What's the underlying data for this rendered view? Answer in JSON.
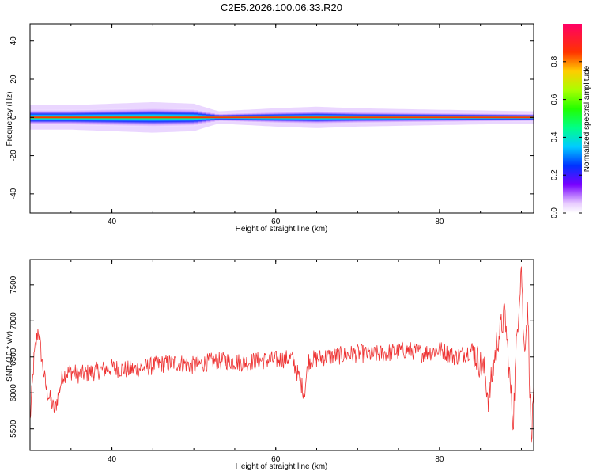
{
  "title": "C2E5.2026.100.06.33.R20",
  "chart_data": [
    {
      "type": "heatmap",
      "xlabel": "Height of straight line (km)",
      "ylabel": "Frequency (Hz)",
      "xlim": [
        30,
        91.5
      ],
      "ylim": [
        -50,
        49
      ],
      "x_ticks": [
        40,
        60,
        80
      ],
      "y_ticks": [
        -40,
        -20,
        0,
        20,
        40
      ],
      "band_center_hz": 0,
      "band_profile": [
        {
          "x": 30,
          "halfwidth_hz": 4
        },
        {
          "x": 35,
          "halfwidth_hz": 4
        },
        {
          "x": 40,
          "halfwidth_hz": 4.5
        },
        {
          "x": 45,
          "halfwidth_hz": 5
        },
        {
          "x": 50,
          "halfwidth_hz": 4.5
        },
        {
          "x": 53,
          "halfwidth_hz": 2
        },
        {
          "x": 60,
          "halfwidth_hz": 3
        },
        {
          "x": 65,
          "halfwidth_hz": 3.5
        },
        {
          "x": 70,
          "halfwidth_hz": 3
        },
        {
          "x": 80,
          "halfwidth_hz": 2.5
        },
        {
          "x": 91.5,
          "halfwidth_hz": 2
        }
      ],
      "colorbar": {
        "label": "Normalized spectral amplitude",
        "ticks": [
          "0.0",
          "0.2",
          "0.4",
          "0.6",
          "0.8"
        ],
        "tick_values": [
          0,
          0.2,
          0.4,
          0.6,
          0.8
        ],
        "range": [
          0,
          1
        ],
        "colormap": "rainbow-hsv"
      }
    },
    {
      "type": "line",
      "xlabel": "Height of straight line (km)",
      "ylabel": "SNR (10 * v/v)",
      "xlim": [
        30,
        91.5
      ],
      "ylim": [
        5200,
        7850
      ],
      "x_ticks": [
        40,
        60,
        80
      ],
      "y_ticks": [
        5500,
        6000,
        6500,
        7000,
        7500
      ],
      "line_color": "#ee3333",
      "series": [
        {
          "x": [
            30,
            30.5,
            31,
            31.5,
            32,
            33,
            34,
            35,
            36,
            38,
            40,
            42,
            44,
            46,
            48,
            50,
            52,
            54,
            56,
            58,
            60,
            62,
            63.5,
            64,
            66,
            68,
            70,
            72,
            74,
            76,
            78,
            80,
            82,
            84,
            85.5,
            86,
            87,
            88,
            88.5,
            89,
            89.5,
            90,
            90.3,
            90.8,
            91.2,
            91.5
          ],
          "values": [
            5600,
            6500,
            6900,
            6400,
            6050,
            5750,
            6250,
            6300,
            6250,
            6300,
            6350,
            6320,
            6350,
            6400,
            6420,
            6380,
            6430,
            6450,
            6420,
            6450,
            6460,
            6480,
            6000,
            6450,
            6500,
            6520,
            6550,
            6530,
            6560,
            6600,
            6550,
            6600,
            6500,
            6600,
            6300,
            5900,
            6700,
            7100,
            6300,
            5600,
            6900,
            7800,
            6600,
            7150,
            5300,
            5900
          ]
        }
      ]
    }
  ]
}
